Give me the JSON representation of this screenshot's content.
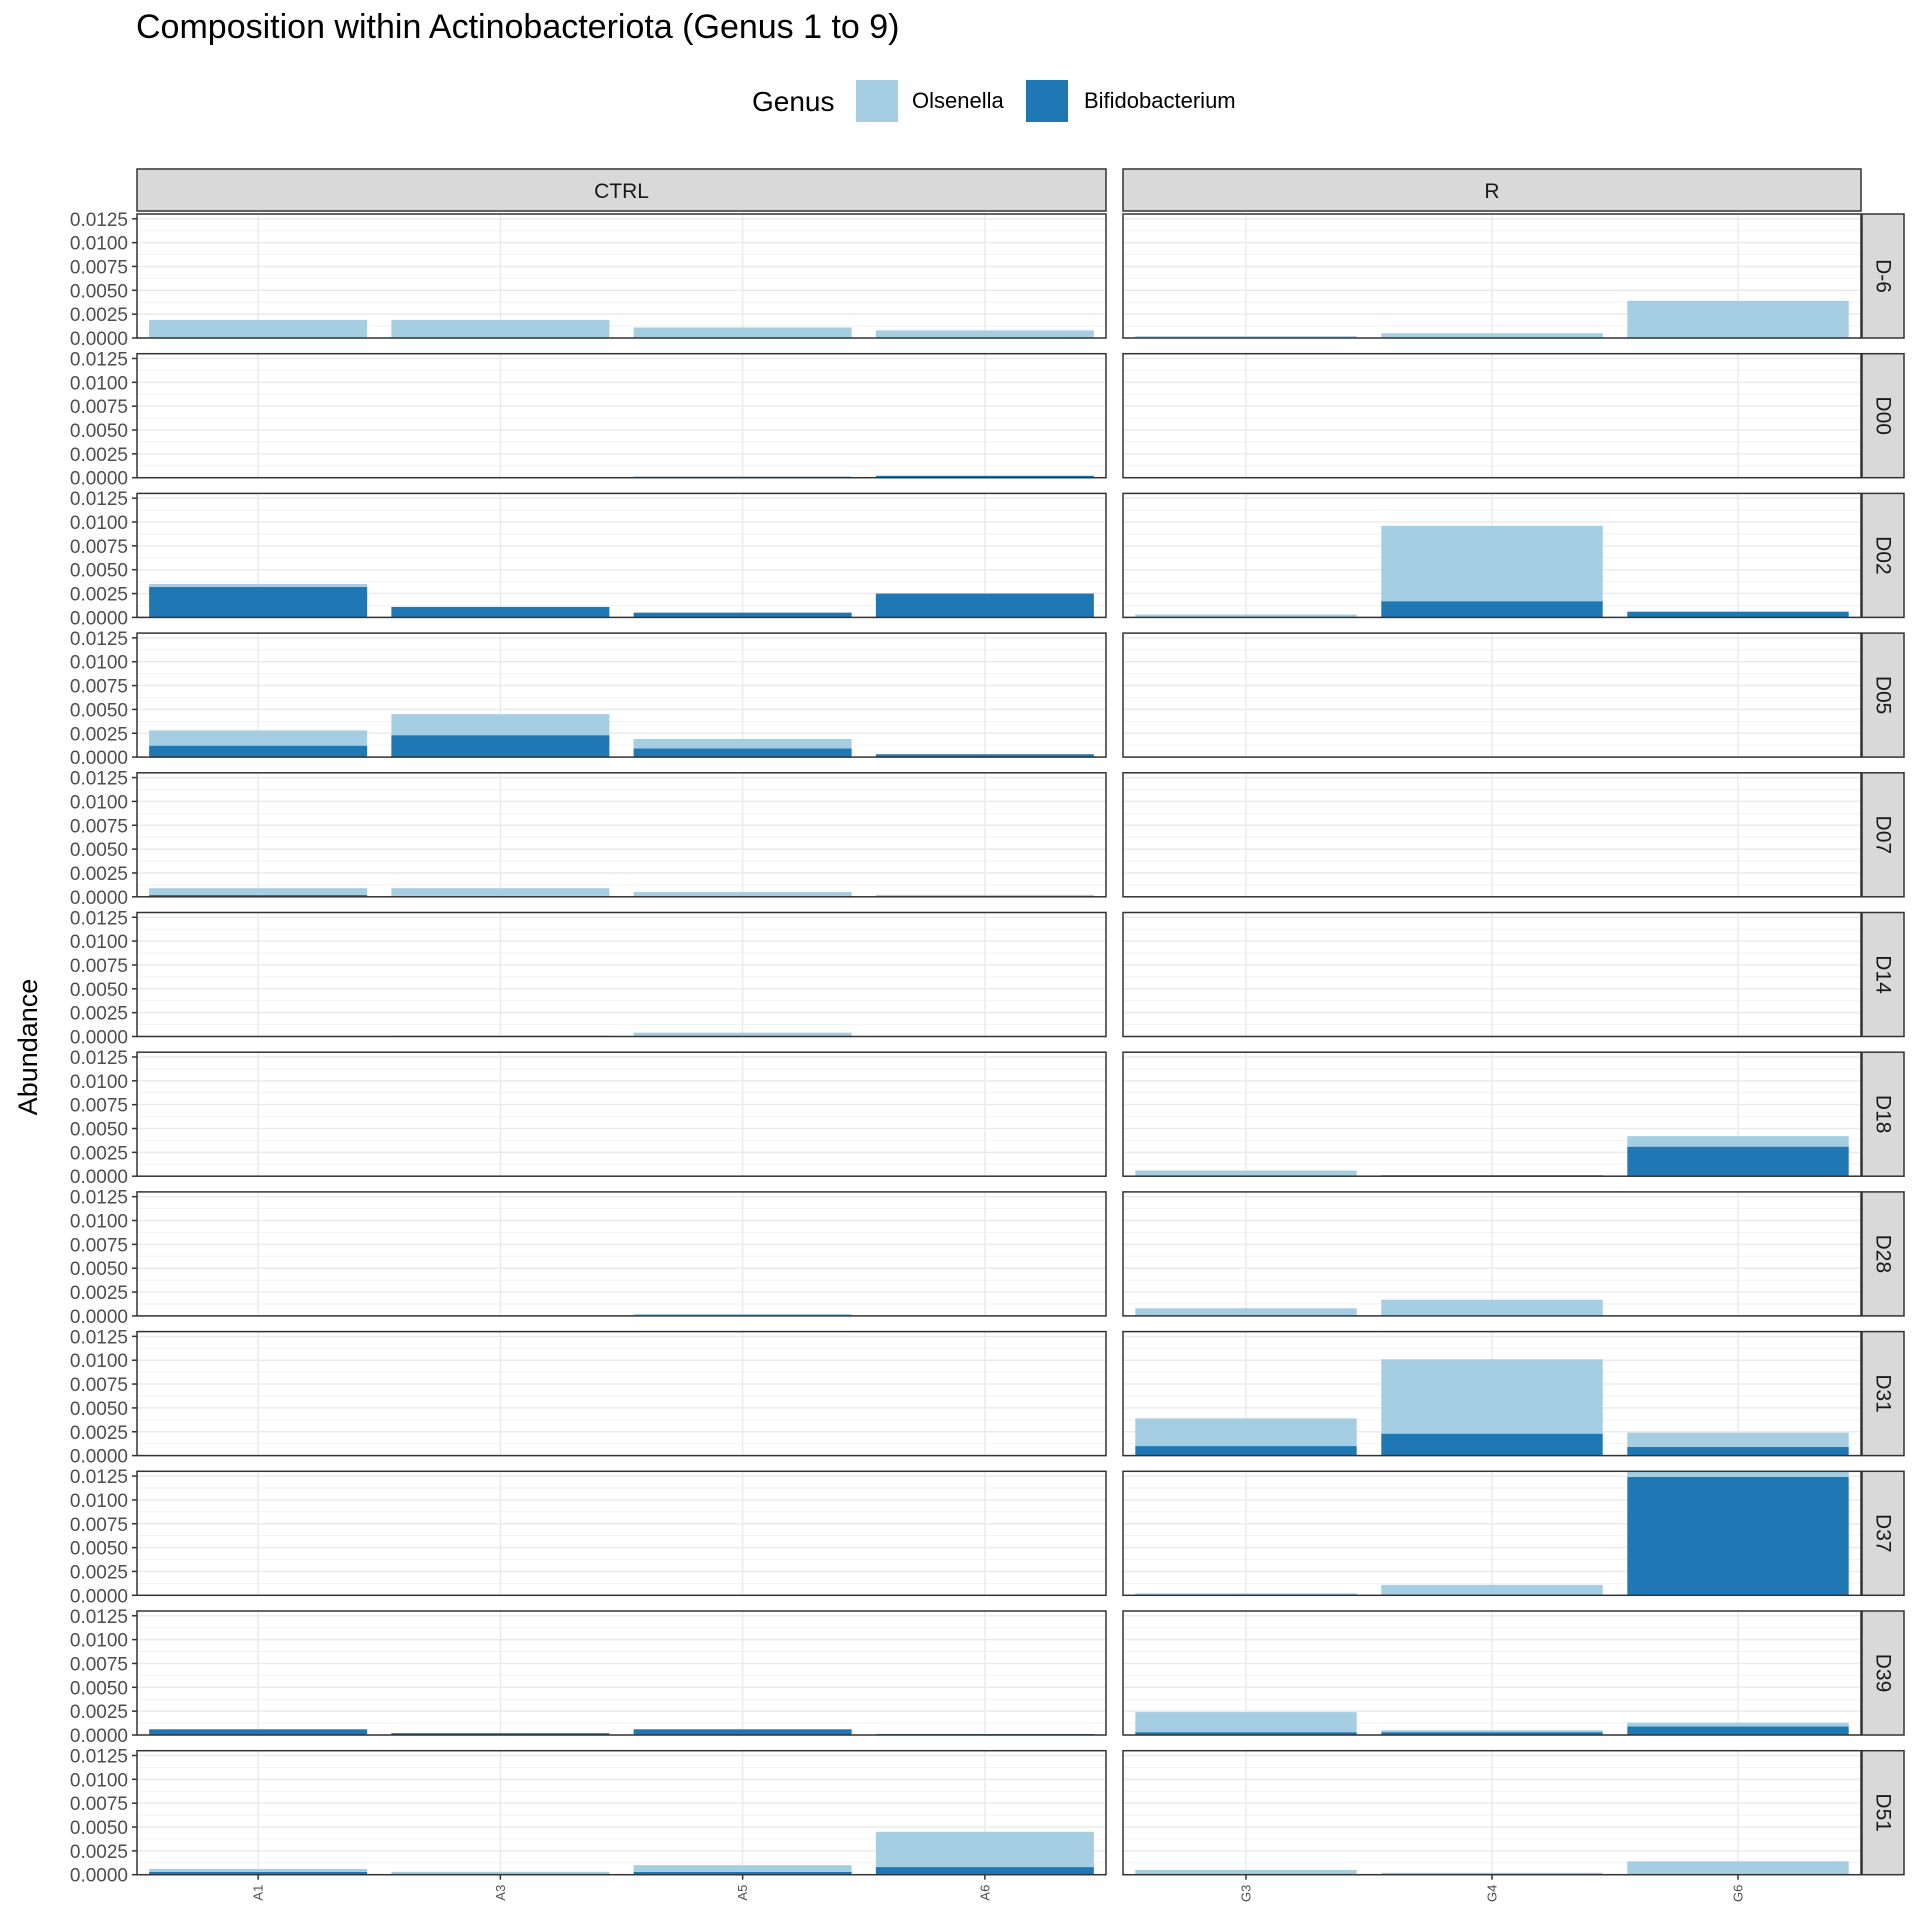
{
  "chart_data": {
    "type": "bar",
    "stacked": true,
    "title": "Composition within Actinobacteriota (Genus 1 to 9)",
    "ylabel": "Abundance",
    "xlabel": "",
    "ylim": [
      0,
      0.013
    ],
    "y_ticks": [
      "0.0000",
      "0.0025",
      "0.0050",
      "0.0075",
      "0.0100",
      "0.0125"
    ],
    "y_tick_values": [
      0,
      0.0025,
      0.005,
      0.0075,
      0.01,
      0.0125
    ],
    "grid": true,
    "legend": {
      "title": "Genus",
      "placement": "top",
      "entries": [
        {
          "name": "Olsenella",
          "color": "#A6CEE3"
        },
        {
          "name": "Bifidobacterium",
          "color": "#1F78B4"
        }
      ]
    },
    "facet_columns": [
      {
        "label": "CTRL",
        "categories": [
          "A1",
          "A3",
          "A5",
          "A6"
        ]
      },
      {
        "label": "R",
        "categories": [
          "G3",
          "G4",
          "G6"
        ]
      }
    ],
    "facet_rows": [
      "D-6",
      "D00",
      "D02",
      "D05",
      "D07",
      "D14",
      "D18",
      "D28",
      "D31",
      "D37",
      "D39",
      "D51"
    ],
    "stack_order": [
      "Bifidobacterium",
      "Olsenella"
    ],
    "panels": [
      {
        "row": "D-6",
        "col": "CTRL",
        "Bifidobacterium": [
          0,
          0,
          0,
          0
        ],
        "Olsenella": [
          0.0019,
          0.0019,
          0.0011,
          0.0008
        ]
      },
      {
        "row": "D-6",
        "col": "R",
        "Bifidobacterium": [
          0,
          0,
          0
        ],
        "Olsenella": [
          0.0002,
          0.0005,
          0.0039
        ]
      },
      {
        "row": "D00",
        "col": "CTRL",
        "Bifidobacterium": [
          0,
          0,
          0.0001,
          0.0002
        ],
        "Olsenella": [
          0,
          0,
          0,
          0
        ]
      },
      {
        "row": "D00",
        "col": "R",
        "Bifidobacterium": [
          0,
          0,
          0
        ],
        "Olsenella": [
          0,
          0,
          0
        ]
      },
      {
        "row": "D02",
        "col": "CTRL",
        "Bifidobacterium": [
          0.0032,
          0.0011,
          0.0005,
          0.0025
        ],
        "Olsenella": [
          0.0003,
          0,
          0,
          0
        ]
      },
      {
        "row": "D02",
        "col": "R",
        "Bifidobacterium": [
          0,
          0.0017,
          0.0006
        ],
        "Olsenella": [
          0.0003,
          0.0079,
          0
        ]
      },
      {
        "row": "D05",
        "col": "CTRL",
        "Bifidobacterium": [
          0.0012,
          0.0023,
          0.0009,
          0.0003
        ],
        "Olsenella": [
          0.0016,
          0.0022,
          0.001,
          0
        ]
      },
      {
        "row": "D05",
        "col": "R",
        "Bifidobacterium": [
          0,
          0,
          0
        ],
        "Olsenella": [
          0,
          0,
          0
        ]
      },
      {
        "row": "D07",
        "col": "CTRL",
        "Bifidobacterium": [
          0.0002,
          0.0001,
          0.0001,
          0.0001
        ],
        "Olsenella": [
          0.0007,
          0.0008,
          0.0004,
          0.0001
        ]
      },
      {
        "row": "D07",
        "col": "R",
        "Bifidobacterium": [
          0,
          0,
          0
        ],
        "Olsenella": [
          0,
          0,
          0
        ]
      },
      {
        "row": "D14",
        "col": "CTRL",
        "Bifidobacterium": [
          0,
          0,
          0,
          0
        ],
        "Olsenella": [
          0,
          0.0001,
          0.0004,
          0
        ]
      },
      {
        "row": "D14",
        "col": "R",
        "Bifidobacterium": [
          0,
          0,
          0
        ],
        "Olsenella": [
          0,
          0,
          0
        ]
      },
      {
        "row": "D18",
        "col": "CTRL",
        "Bifidobacterium": [
          0,
          0,
          0,
          0
        ],
        "Olsenella": [
          0,
          0,
          0,
          0
        ]
      },
      {
        "row": "D18",
        "col": "R",
        "Bifidobacterium": [
          0,
          0.0001,
          0.0031
        ],
        "Olsenella": [
          0.0006,
          0,
          0.0011
        ]
      },
      {
        "row": "D28",
        "col": "CTRL",
        "Bifidobacterium": [
          0,
          0,
          0,
          0
        ],
        "Olsenella": [
          0,
          0,
          0.0002,
          0
        ]
      },
      {
        "row": "D28",
        "col": "R",
        "Bifidobacterium": [
          0,
          0,
          0
        ],
        "Olsenella": [
          0.0008,
          0.0017,
          0
        ]
      },
      {
        "row": "D31",
        "col": "CTRL",
        "Bifidobacterium": [
          0,
          0,
          0,
          0
        ],
        "Olsenella": [
          0,
          0,
          0,
          0
        ]
      },
      {
        "row": "D31",
        "col": "R",
        "Bifidobacterium": [
          0.001,
          0.0023,
          0.0009
        ],
        "Olsenella": [
          0.0029,
          0.0078,
          0.0015
        ]
      },
      {
        "row": "D37",
        "col": "CTRL",
        "Bifidobacterium": [
          0,
          0,
          0,
          0
        ],
        "Olsenella": [
          0,
          0,
          0,
          0
        ]
      },
      {
        "row": "D37",
        "col": "R",
        "Bifidobacterium": [
          0,
          0,
          0.0124
        ],
        "Olsenella": [
          0.0002,
          0.0011,
          0.0006
        ]
      },
      {
        "row": "D39",
        "col": "CTRL",
        "Bifidobacterium": [
          0.0006,
          0.0002,
          0.0006,
          0.0001
        ],
        "Olsenella": [
          0,
          0,
          0,
          0
        ]
      },
      {
        "row": "D39",
        "col": "R",
        "Bifidobacterium": [
          0.0003,
          0.0003,
          0.0009
        ],
        "Olsenella": [
          0.0021,
          0.0002,
          0.0004
        ]
      },
      {
        "row": "D51",
        "col": "CTRL",
        "Bifidobacterium": [
          0.0003,
          0.0001,
          0.0003,
          0.0008
        ],
        "Olsenella": [
          0.0003,
          0.0002,
          0.0007,
          0.0037
        ]
      },
      {
        "row": "D51",
        "col": "R",
        "Bifidobacterium": [
          0,
          0,
          0
        ],
        "Olsenella": [
          0.0005,
          0.0002,
          0.0014
        ]
      }
    ]
  }
}
